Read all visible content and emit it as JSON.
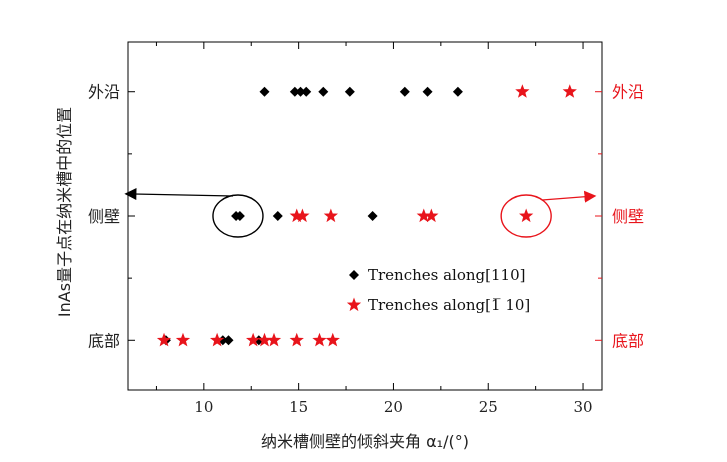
{
  "chart_data": {
    "type": "scatter",
    "x_axis": {
      "label": "纳米槽侧壁的倾斜夹角 α₁/(°)",
      "range": [
        6,
        31
      ],
      "ticks": [
        10,
        15,
        20,
        25,
        30
      ],
      "tick_labels": [
        "10",
        "15",
        "20",
        "25",
        "30"
      ]
    },
    "y_axis": {
      "label": "InAs量子点在纳米槽中的位置",
      "categories": [
        "底部",
        "侧壁",
        "外沿"
      ],
      "range": [
        -0.4,
        2.4
      ]
    },
    "right_axis": {
      "categories": [
        "底部",
        "侧壁",
        "外沿"
      ],
      "color": "#e8141b"
    },
    "series": [
      {
        "name": "Trenches along[110]",
        "marker": "diamond",
        "color": "#000000",
        "points": [
          {
            "x": 13.2,
            "y": 2
          },
          {
            "x": 14.8,
            "y": 2
          },
          {
            "x": 15.1,
            "y": 2
          },
          {
            "x": 15.4,
            "y": 2
          },
          {
            "x": 16.3,
            "y": 2
          },
          {
            "x": 17.7,
            "y": 2
          },
          {
            "x": 20.6,
            "y": 2
          },
          {
            "x": 21.8,
            "y": 2
          },
          {
            "x": 23.4,
            "y": 2
          },
          {
            "x": 11.7,
            "y": 1
          },
          {
            "x": 11.9,
            "y": 1
          },
          {
            "x": 13.9,
            "y": 1
          },
          {
            "x": 18.9,
            "y": 1
          },
          {
            "x": 8.0,
            "y": 0
          },
          {
            "x": 11.0,
            "y": 0
          },
          {
            "x": 11.3,
            "y": 0
          },
          {
            "x": 12.9,
            "y": 0
          }
        ]
      },
      {
        "name": "Trenches along[1̄ 10]",
        "marker": "star",
        "color": "#e8141b",
        "points": [
          {
            "x": 26.8,
            "y": 2
          },
          {
            "x": 29.3,
            "y": 2
          },
          {
            "x": 14.9,
            "y": 1
          },
          {
            "x": 15.2,
            "y": 1
          },
          {
            "x": 16.7,
            "y": 1
          },
          {
            "x": 21.6,
            "y": 1
          },
          {
            "x": 22.0,
            "y": 1
          },
          {
            "x": 27.0,
            "y": 1
          },
          {
            "x": 7.9,
            "y": 0
          },
          {
            "x": 8.9,
            "y": 0
          },
          {
            "x": 10.7,
            "y": 0
          },
          {
            "x": 12.6,
            "y": 0
          },
          {
            "x": 13.2,
            "y": 0
          },
          {
            "x": 13.7,
            "y": 0
          },
          {
            "x": 14.9,
            "y": 0
          },
          {
            "x": 16.1,
            "y": 0
          },
          {
            "x": 16.8,
            "y": 0
          }
        ]
      }
    ],
    "legend": {
      "position": "center-right",
      "entries": [
        {
          "label": "Trenches along[110]",
          "marker": "diamond",
          "color": "#000000"
        },
        {
          "label": "Trenches along[1̅ 10]",
          "marker": "star",
          "color": "#e8141b"
        }
      ]
    },
    "annotations": [
      {
        "type": "ellipse",
        "x": 11.8,
        "y": 1,
        "color": "#000000",
        "arrow_direction": "left"
      },
      {
        "type": "ellipse",
        "x": 27.0,
        "y": 1,
        "color": "#e8141b",
        "arrow_direction": "right"
      }
    ]
  }
}
